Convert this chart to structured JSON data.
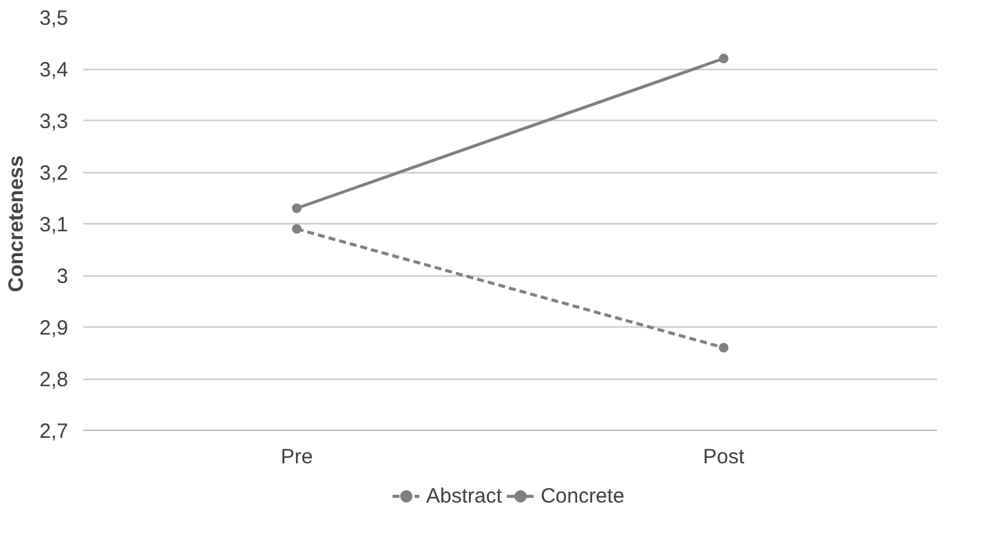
{
  "chart_data": {
    "type": "line",
    "ylabel": "Concreteness",
    "categories": [
      "Pre",
      "Post"
    ],
    "series": [
      {
        "name": "Abstract",
        "color": "#808080",
        "values": [
          3.09,
          2.86
        ],
        "line_style": "dashed"
      },
      {
        "name": "Concrete",
        "color": "#808080",
        "values": [
          3.13,
          3.42
        ],
        "line_style": "solid"
      }
    ],
    "ylim": [
      2.7,
      3.5
    ],
    "yticks": [
      {
        "value": 2.7,
        "label": "2,7"
      },
      {
        "value": 2.8,
        "label": "2,8"
      },
      {
        "value": 2.9,
        "label": "2,9"
      },
      3,
      {
        "value": 3.1,
        "label": "3,1"
      },
      {
        "value": 3.2,
        "label": "3,2"
      },
      {
        "value": 3.3,
        "label": "3,3"
      },
      {
        "value": 3.4,
        "label": "3,4"
      },
      {
        "value": 3.5,
        "label": "3,5"
      }
    ],
    "grid": "y",
    "legend": "bottom",
    "marker": "circle"
  }
}
